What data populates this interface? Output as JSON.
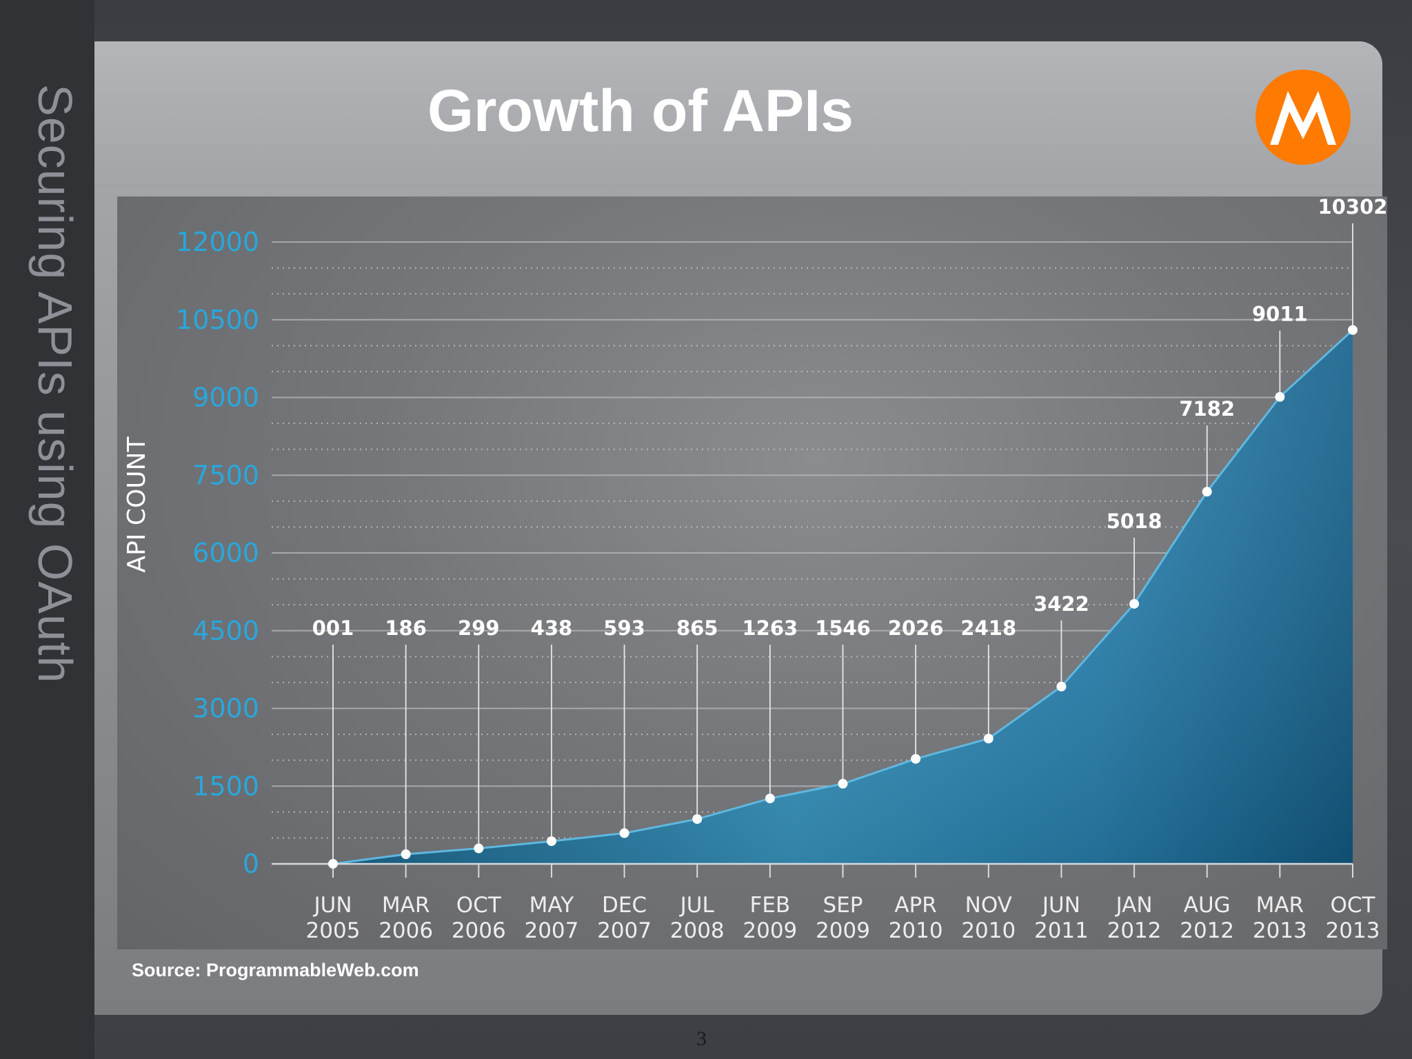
{
  "sidebar": {
    "vertical_title": "Securing APIs using OAuth"
  },
  "header": {
    "title": "Growth of APIs",
    "logo": "motorola-m-logo",
    "logo_color": "#ff7a00"
  },
  "footer": {
    "source": "Source: ProgrammableWeb.com",
    "page_number": "3"
  },
  "colors": {
    "axis_label": "#2aa7dc",
    "area_light": "#4fb4dc",
    "area_dark": "#0f5f8a",
    "text": "#ffffff"
  },
  "chart_data": {
    "type": "area",
    "title": "",
    "xlabel": "",
    "ylabel": "API COUNT",
    "ylim": [
      0,
      12000
    ],
    "yticks": [
      0,
      1500,
      3000,
      4500,
      6000,
      7500,
      9000,
      10500,
      12000
    ],
    "ytick_labels": [
      "0",
      "1500",
      "3000",
      "4500",
      "6000",
      "7500",
      "9000",
      "10500",
      "12000"
    ],
    "grid": true,
    "categories": [
      [
        "JUN",
        "2005"
      ],
      [
        "MAR",
        "2006"
      ],
      [
        "OCT",
        "2006"
      ],
      [
        "MAY",
        "2007"
      ],
      [
        "DEC",
        "2007"
      ],
      [
        "JUL",
        "2008"
      ],
      [
        "FEB",
        "2009"
      ],
      [
        "SEP",
        "2009"
      ],
      [
        "APR",
        "2010"
      ],
      [
        "NOV",
        "2010"
      ],
      [
        "JUN",
        "2011"
      ],
      [
        "JAN",
        "2012"
      ],
      [
        "AUG",
        "2012"
      ],
      [
        "MAR",
        "2013"
      ],
      [
        "OCT",
        "2013"
      ]
    ],
    "values": [
      1,
      186,
      299,
      438,
      593,
      865,
      1263,
      1546,
      2026,
      2418,
      3422,
      5018,
      7182,
      9011,
      10302
    ],
    "value_labels": [
      "001",
      "186",
      "299",
      "438",
      "593",
      "865",
      "1263",
      "1546",
      "2026",
      "2418",
      "3422",
      "5018",
      "7182",
      "9011",
      "10302"
    ]
  }
}
